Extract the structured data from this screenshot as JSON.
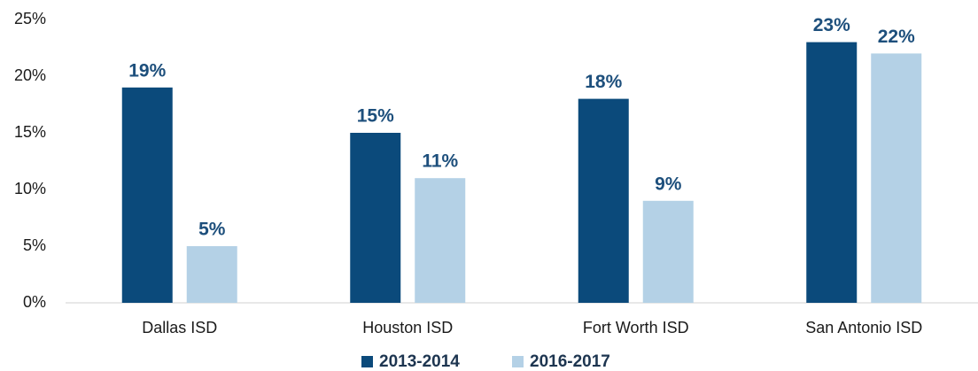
{
  "chart_data": {
    "type": "bar",
    "categories": [
      "Dallas ISD",
      "Houston ISD",
      "Fort Worth ISD",
      "San Antonio ISD"
    ],
    "series": [
      {
        "name": "2013-2014",
        "color": "#0b4a7b",
        "values": [
          19,
          15,
          18,
          23
        ],
        "value_labels": [
          "19%",
          "15%",
          "18%",
          "23%"
        ]
      },
      {
        "name": "2016-2017",
        "color": "#b4d1e6",
        "values": [
          5,
          11,
          9,
          22
        ],
        "value_labels": [
          "5%",
          "11%",
          "9%",
          "22%"
        ]
      }
    ],
    "ylim": [
      0,
      25
    ],
    "yticks": [
      {
        "value": 0,
        "label": "0%"
      },
      {
        "value": 5,
        "label": "5%"
      },
      {
        "value": 10,
        "label": "10%"
      },
      {
        "value": 15,
        "label": "15%"
      },
      {
        "value": 20,
        "label": "20%"
      },
      {
        "value": 25,
        "label": "25%"
      }
    ],
    "grid": false,
    "legend": "bottom"
  }
}
